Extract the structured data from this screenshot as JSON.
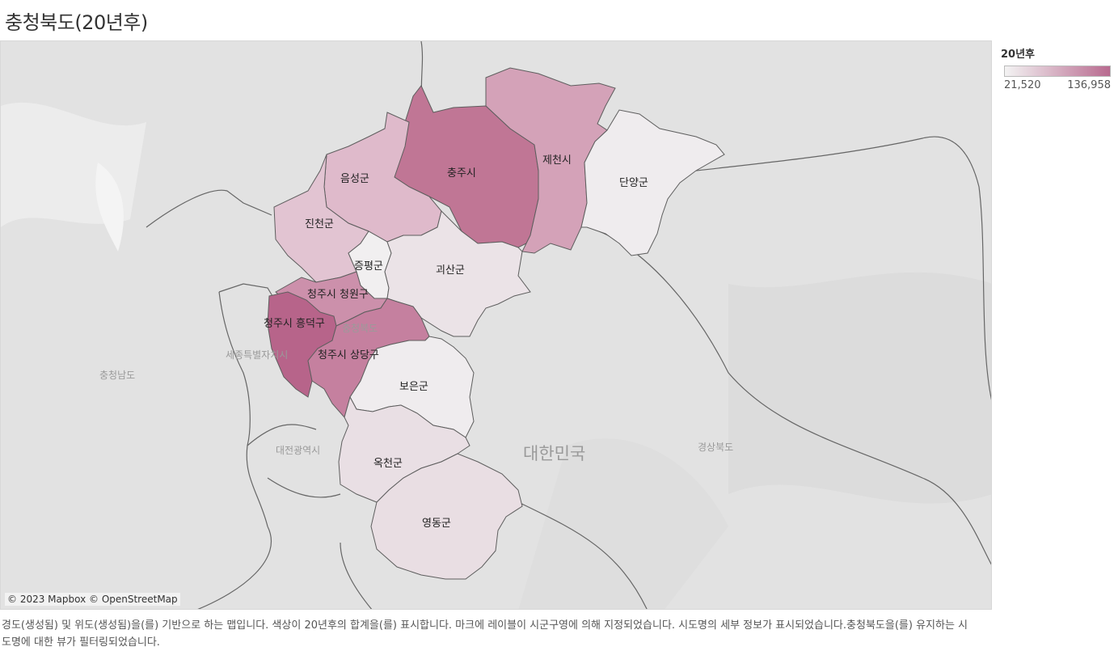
{
  "title": "충청북도(20년후)",
  "legend": {
    "title": "20년후",
    "min_label": "21,520",
    "max_label": "136,958",
    "min_color": "#f3f3f3",
    "max_color": "#b86a8f"
  },
  "regions": [
    {
      "label": "충주시",
      "color": "#c07695"
    },
    {
      "label": "제천시",
      "color": "#d4a2b8"
    },
    {
      "label": "단양군",
      "color": "#efecee"
    },
    {
      "label": "음성군",
      "color": "#dfbacb"
    },
    {
      "label": "진천군",
      "color": "#e2c4d2"
    },
    {
      "label": "증평군",
      "color": "#f1eff0"
    },
    {
      "label": "괴산군",
      "color": "#ebe3e7"
    },
    {
      "label": "청주시 청원구",
      "color": "#cc90ab"
    },
    {
      "label": "청주시 흥덕구",
      "color": "#b7648a"
    },
    {
      "label": "청주시 상당구",
      "color": "#c5809f"
    },
    {
      "label": "보은군",
      "color": "#efecee"
    },
    {
      "label": "옥천군",
      "color": "#e9dfe4"
    },
    {
      "label": "영동군",
      "color": "#e9dee3"
    }
  ],
  "base_map_labels": {
    "country": "대한민국",
    "sejong": "세종특별자치시",
    "chungnam": "충청남도",
    "daejeon": "대전광역시",
    "gyeongbuk": "경상북도",
    "chungbuk": "충청북도"
  },
  "attribution": "© 2023 Mapbox © OpenStreetMap",
  "caption": "경도(생성됨) 및 위도(생성됨)을(를) 기반으로 하는 맵입니다. 색상이 20년후의 합계을(를) 표시합니다. 마크에 레이블이 시군구영에 의해 지정되었습니다. 시도명의 세부 정보가 표시되었습니다.충청북도을(를) 유지하는 시도명에 대한 뷰가 필터링되었습니다."
}
